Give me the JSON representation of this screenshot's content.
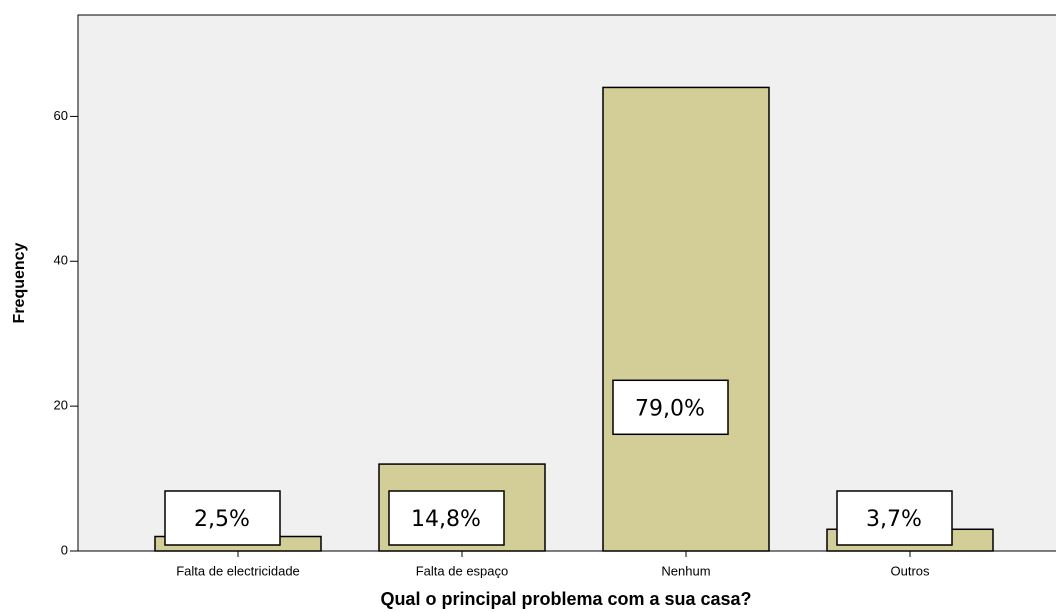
{
  "chart_data": {
    "type": "bar",
    "x_label": "Qual o principal problema com a sua casa?",
    "y_label": "Frequency",
    "categories": [
      "Falta de electricidade",
      "Falta de espaço",
      "Nenhum",
      "Outros"
    ],
    "values": [
      2,
      12,
      64,
      3
    ],
    "percentages": [
      2.5,
      14.8,
      79.0,
      3.7
    ],
    "percentage_labels": [
      "2,5%",
      "14,8%",
      "79,0%",
      "3,7%"
    ],
    "color": "#d3ce98",
    "ylim": [
      0,
      74
    ],
    "yticks": [
      0,
      20,
      40,
      60
    ],
    "grid": false
  }
}
